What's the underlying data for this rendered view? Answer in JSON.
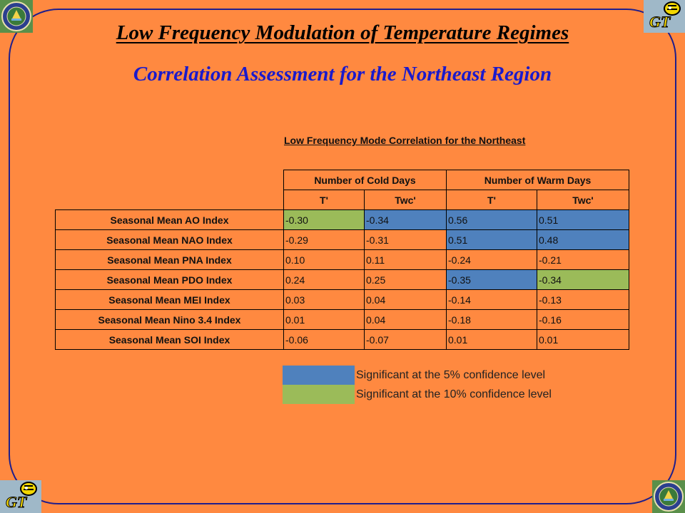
{
  "slide": {
    "title": "Low Frequency Modulation of Temperature Regimes",
    "subtitle": "Correlation Assessment for the Northeast Region"
  },
  "logos": {
    "top_left": "doe-seal-icon",
    "top_right": "georgia-tech-yellow-jacket-icon",
    "bottom_left": "georgia-tech-yellow-jacket-icon",
    "bottom_right": "doe-seal-icon"
  },
  "table": {
    "title": "Low Frequency Mode Correlation for the Northeast",
    "group_headers": [
      "Number of Cold Days",
      "Number of Warm Days"
    ],
    "sub_headers": [
      "T'",
      "Twc'",
      "T'",
      "Twc'"
    ],
    "rows": [
      {
        "label": "Seasonal Mean AO Index",
        "values": [
          "-0.30",
          "-0.34",
          "0.56",
          "0.51"
        ],
        "sig": [
          "10",
          "5",
          "5",
          "5"
        ]
      },
      {
        "label": "Seasonal Mean NAO Index",
        "values": [
          "-0.29",
          "-0.31",
          "0.51",
          "0.48"
        ],
        "sig": [
          "",
          "",
          "5",
          "5"
        ]
      },
      {
        "label": "Seasonal Mean PNA Index",
        "values": [
          "0.10",
          "0.11",
          "-0.24",
          "-0.21"
        ],
        "sig": [
          "",
          "",
          "",
          ""
        ]
      },
      {
        "label": "Seasonal Mean PDO Index",
        "values": [
          "0.24",
          "0.25",
          "-0.35",
          "-0.34"
        ],
        "sig": [
          "",
          "",
          "5",
          "10"
        ]
      },
      {
        "label": "Seasonal Mean MEI Index",
        "values": [
          "0.03",
          "0.04",
          "-0.14",
          "-0.13"
        ],
        "sig": [
          "",
          "",
          "",
          ""
        ]
      },
      {
        "label": "Seasonal Mean Nino 3.4 Index",
        "values": [
          "0.01",
          "0.04",
          "-0.18",
          "-0.16"
        ],
        "sig": [
          "",
          "",
          "",
          ""
        ]
      },
      {
        "label": "Seasonal Mean SOI Index",
        "values": [
          "-0.06",
          "-0.07",
          "0.01",
          "0.01"
        ],
        "sig": [
          "",
          "",
          "",
          ""
        ]
      }
    ]
  },
  "legend": {
    "items": [
      {
        "label": "Significant at the 5% confidence level",
        "color": "#4F81BD"
      },
      {
        "label": "Significant at the 10% confidence level",
        "color": "#9BBB59"
      }
    ]
  },
  "colors": {
    "background": "#FF8940",
    "frame": "#1E1E8C",
    "subtitle": "#1A1ACC",
    "sig5": "#4F81BD",
    "sig10": "#9BBB59"
  }
}
